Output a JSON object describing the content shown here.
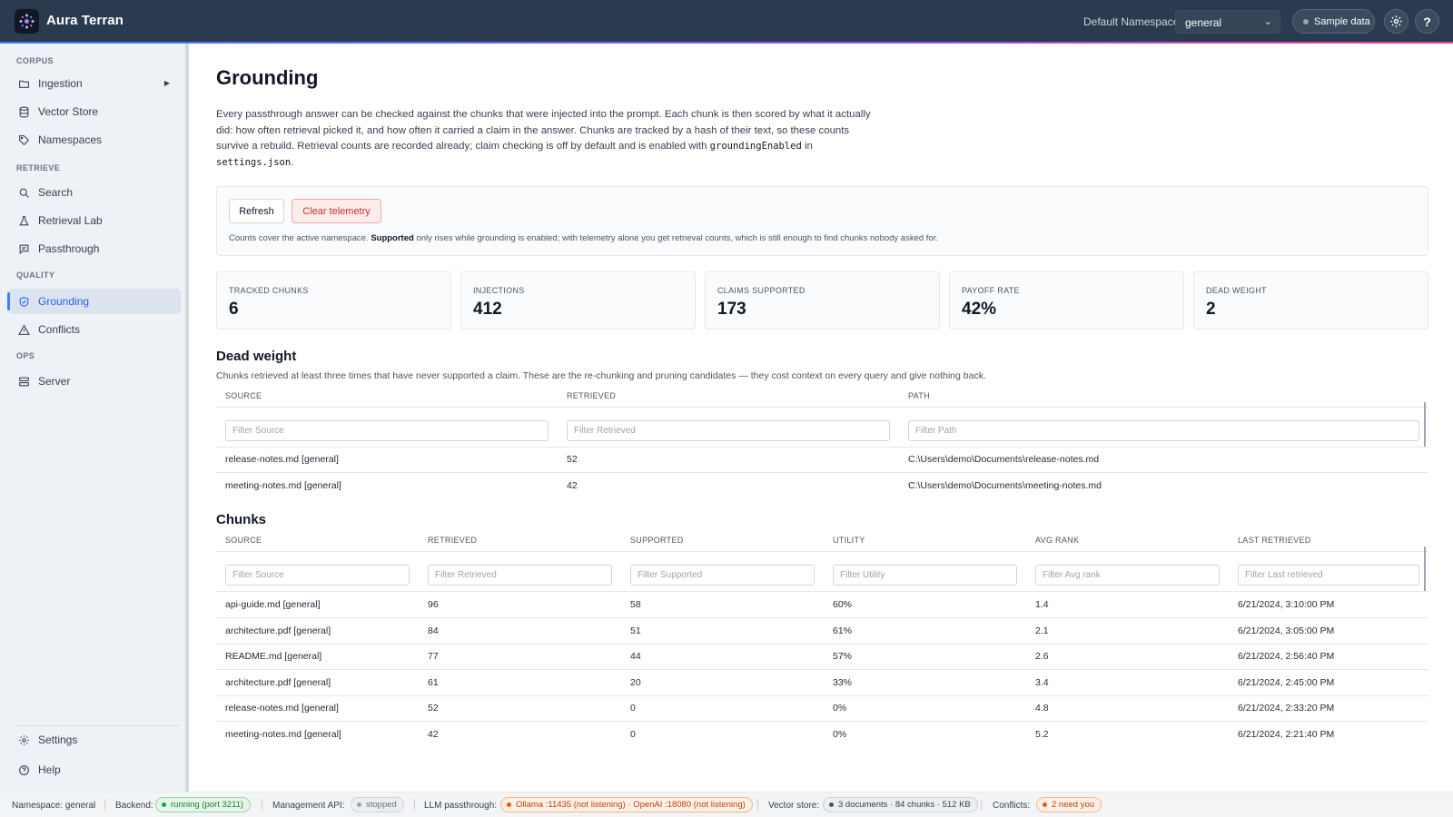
{
  "app": {
    "brand": "Aura Terran",
    "namespace_label": "Default Namespace",
    "namespace_value": "general",
    "sample_label": "Sample data",
    "help_glyph": "?"
  },
  "sidebar": {
    "sections": [
      {
        "label": "CORPUS",
        "items": [
          {
            "label": "Ingestion",
            "icon": "folder-icon",
            "has_arrow": true
          },
          {
            "label": "Vector Store",
            "icon": "database-icon"
          },
          {
            "label": "Namespaces",
            "icon": "tag-icon"
          }
        ]
      },
      {
        "label": "RETRIEVE",
        "items": [
          {
            "label": "Search",
            "icon": "search-icon"
          },
          {
            "label": "Retrieval Lab",
            "icon": "flask-icon"
          },
          {
            "label": "Passthrough",
            "icon": "chat-icon"
          }
        ]
      },
      {
        "label": "QUALITY",
        "items": [
          {
            "label": "Grounding",
            "icon": "shield-check-icon",
            "active": true
          },
          {
            "label": "Conflicts",
            "icon": "warning-icon"
          }
        ]
      },
      {
        "label": "OPS",
        "items": [
          {
            "label": "Server",
            "icon": "server-icon"
          }
        ]
      }
    ],
    "footer": [
      {
        "label": "Settings",
        "icon": "gear-icon"
      },
      {
        "label": "Help",
        "icon": "help-circle-icon"
      }
    ]
  },
  "page": {
    "title": "Grounding",
    "intro_before_code1": "Every passthrough answer can be checked against the chunks that were injected into the prompt. Each chunk is then scored by what it actually did: how often retrieval picked it, and how often it carried a claim in the answer. Chunks are tracked by a hash of their text, so these counts survive a rebuild. Retrieval counts are recorded already; claim checking is off by default and is enabled with ",
    "intro_code1": "groundingEnabled",
    "intro_mid": " in ",
    "intro_code2": "settings.json",
    "intro_end": ".",
    "refresh_label": "Refresh",
    "clear_label": "Clear telemetry",
    "note_before": "Counts cover the active namespace. ",
    "note_bold": "Supported",
    "note_after": " only rises while grounding is enabled; with telemetry alone you get retrieval counts, which is still enough to find chunks nobody asked for."
  },
  "stats": [
    {
      "label": "TRACKED CHUNKS",
      "value": "6"
    },
    {
      "label": "INJECTIONS",
      "value": "412"
    },
    {
      "label": "CLAIMS SUPPORTED",
      "value": "173"
    },
    {
      "label": "PAYOFF RATE",
      "value": "42%"
    },
    {
      "label": "DEAD WEIGHT",
      "value": "2"
    }
  ],
  "dead_weight": {
    "title": "Dead weight",
    "description": "Chunks retrieved at least three times that have never supported a claim. These are the re-chunking and pruning candidates — they cost context on every query and give nothing back.",
    "columns": [
      "SOURCE",
      "RETRIEVED",
      "PATH"
    ],
    "filters": [
      "Filter Source",
      "Filter Retrieved",
      "Filter Path"
    ],
    "rows": [
      [
        "release-notes.md [general]",
        "52",
        "C:\\Users\\demo\\Documents\\release-notes.md"
      ],
      [
        "meeting-notes.md [general]",
        "42",
        "C:\\Users\\demo\\Documents\\meeting-notes.md"
      ]
    ]
  },
  "chunks": {
    "title": "Chunks",
    "columns": [
      "SOURCE",
      "RETRIEVED",
      "SUPPORTED",
      "UTILITY",
      "AVG RANK",
      "LAST RETRIEVED"
    ],
    "filters": [
      "Filter Source",
      "Filter Retrieved",
      "Filter Supported",
      "Filter Utility",
      "Filter Avg rank",
      "Filter Last retrieved"
    ],
    "rows": [
      [
        "api-guide.md [general]",
        "96",
        "58",
        "60%",
        "1.4",
        "6/21/2024, 3:10:00 PM"
      ],
      [
        "architecture.pdf [general]",
        "84",
        "51",
        "61%",
        "2.1",
        "6/21/2024, 3:05:00 PM"
      ],
      [
        "README.md [general]",
        "77",
        "44",
        "57%",
        "2.6",
        "6/21/2024, 2:56:40 PM"
      ],
      [
        "architecture.pdf [general]",
        "61",
        "20",
        "33%",
        "3.4",
        "6/21/2024, 2:45:00 PM"
      ],
      [
        "release-notes.md [general]",
        "52",
        "0",
        "0%",
        "4.8",
        "6/21/2024, 2:33:20 PM"
      ],
      [
        "meeting-notes.md [general]",
        "42",
        "0",
        "0%",
        "5.2",
        "6/21/2024, 2:21:40 PM"
      ]
    ]
  },
  "statusbar": {
    "namespace": "Namespace: general",
    "backend_label": "Backend:",
    "backend_value": "running (port 3211)",
    "mgmt_label": "Management API:",
    "mgmt_value": "stopped",
    "llm_label": "LLM passthrough:",
    "llm_value": "Ollama :11435 (not listening) · OpenAI :18080 (not listening)",
    "vector_label": "Vector store:",
    "vector_value": "3 documents · 84 chunks · 512 KB",
    "conflicts_label": "Conflicts:",
    "conflicts_value": "2 need you"
  }
}
